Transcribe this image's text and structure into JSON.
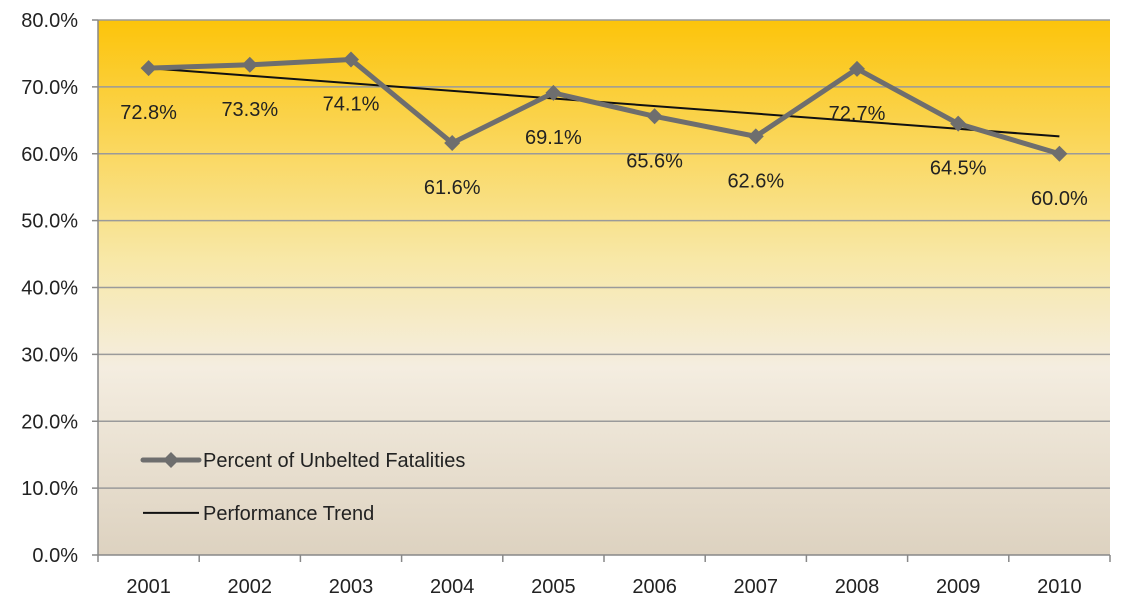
{
  "chart_data": {
    "type": "line",
    "categories": [
      "2001",
      "2002",
      "2003",
      "2004",
      "2005",
      "2006",
      "2007",
      "2008",
      "2009",
      "2010"
    ],
    "series": [
      {
        "name": "Percent of Unbelted Fatalities",
        "values": [
          72.8,
          73.3,
          74.1,
          61.6,
          69.1,
          65.6,
          62.6,
          72.7,
          64.5,
          60.0
        ],
        "labels": [
          "72.8%",
          "73.3%",
          "74.1%",
          "61.6%",
          "69.1%",
          "65.6%",
          "62.6%",
          "72.7%",
          "64.5%",
          "60.0%"
        ],
        "color": "#6e6e6e",
        "marker": "diamond"
      },
      {
        "name": "Performance Trend",
        "type": "linear-trendline",
        "start": 72.8,
        "end": 62.6,
        "color": "#111111"
      }
    ],
    "y_ticks": [
      "0.0%",
      "10.0%",
      "20.0%",
      "30.0%",
      "40.0%",
      "50.0%",
      "60.0%",
      "70.0%",
      "80.0%"
    ],
    "ylim": [
      0,
      80
    ],
    "grid": true,
    "legend_position": "bottom-left",
    "background_gradient": [
      "#fcc40a",
      "#f8e8a8",
      "#f4ede0",
      "#ddd2c0"
    ]
  }
}
